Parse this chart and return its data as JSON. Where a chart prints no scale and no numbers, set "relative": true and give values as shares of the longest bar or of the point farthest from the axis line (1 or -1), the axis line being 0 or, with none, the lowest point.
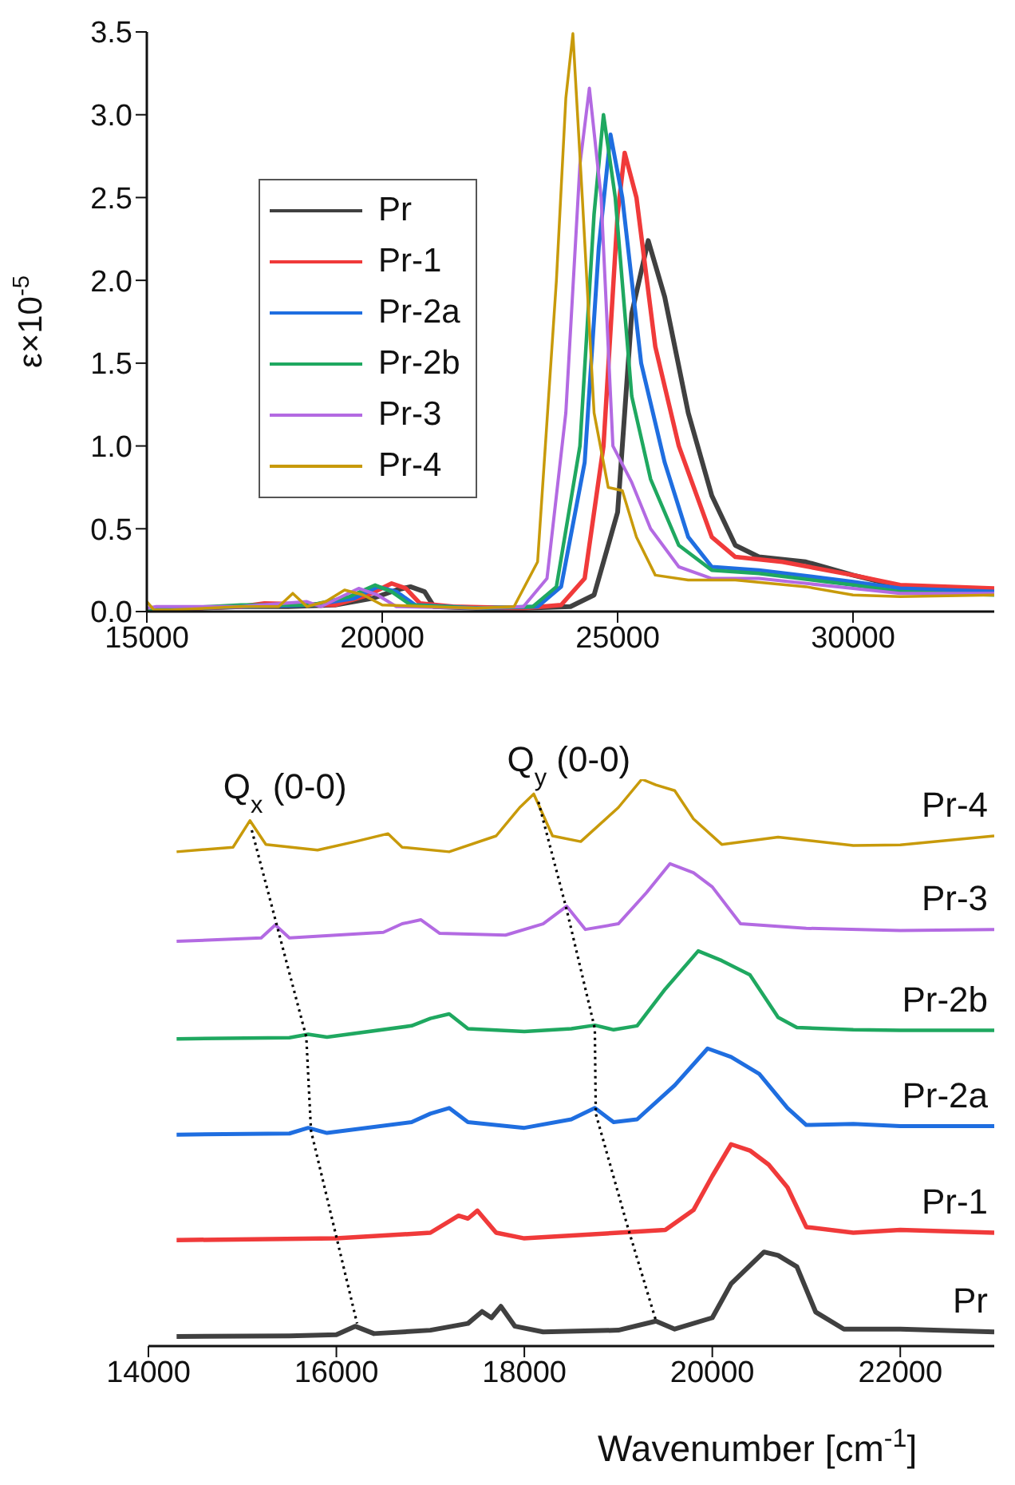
{
  "chart_data": [
    {
      "type": "line",
      "ylabel": "ε×10$^{-5}$",
      "xlim": [
        15000,
        33000
      ],
      "xticks": [
        15000,
        20000,
        25000,
        30000
      ],
      "ylim": [
        0,
        3.5
      ],
      "yticks": [
        {
          "value": 0,
          "label": "0.0"
        },
        {
          "value": 0.5,
          "label": "0.5"
        },
        {
          "value": 1,
          "label": "1.0"
        },
        {
          "value": 1.5,
          "label": "1.5"
        },
        {
          "value": 2,
          "label": "2.0"
        },
        {
          "value": 2.5,
          "label": "2.5"
        },
        {
          "value": 3,
          "label": "3.0"
        },
        {
          "value": 3.5,
          "label": "3.5"
        }
      ],
      "legend": "left",
      "marker": "none",
      "series": [
        {
          "name": "Pr",
          "color": "#404040",
          "x": [
            15000,
            17000,
            18000,
            19000,
            19800,
            20300,
            20600,
            20900,
            21100,
            22000,
            23000,
            24000,
            24500,
            25000,
            25300,
            25650,
            26000,
            26500,
            27000,
            27500,
            28000,
            29000,
            30000,
            31000,
            32000,
            33000
          ],
          "values": [
            0.01,
            0.03,
            0.03,
            0.04,
            0.08,
            0.13,
            0.15,
            0.12,
            0.03,
            0.02,
            0.02,
            0.03,
            0.1,
            0.6,
            1.8,
            2.24,
            1.9,
            1.2,
            0.7,
            0.4,
            0.33,
            0.3,
            0.22,
            0.15,
            0.13,
            0.12
          ]
        },
        {
          "name": "Pr-1",
          "color": "#f03a3a",
          "x": [
            15000,
            17000,
            17500,
            19000,
            19700,
            20200,
            20500,
            20800,
            21500,
            23000,
            23800,
            24300,
            24700,
            25000,
            25150,
            25400,
            25800,
            26300,
            27000,
            27500,
            28500,
            30000,
            31000,
            33000
          ],
          "values": [
            0.01,
            0.03,
            0.05,
            0.04,
            0.1,
            0.17,
            0.14,
            0.05,
            0.03,
            0.02,
            0.04,
            0.2,
            1.0,
            2.4,
            2.77,
            2.5,
            1.6,
            1.0,
            0.45,
            0.33,
            0.3,
            0.22,
            0.16,
            0.14
          ]
        },
        {
          "name": "Pr-2a",
          "color": "#1f6ee0",
          "x": [
            15000,
            17000,
            18500,
            19400,
            19900,
            20300,
            20700,
            22000,
            23300,
            23800,
            24300,
            24600,
            24850,
            25100,
            25500,
            26000,
            26500,
            27000,
            28000,
            30000,
            31000,
            33000
          ],
          "values": [
            0.01,
            0.03,
            0.04,
            0.08,
            0.15,
            0.12,
            0.04,
            0.02,
            0.03,
            0.15,
            0.9,
            2.2,
            2.88,
            2.5,
            1.5,
            0.9,
            0.45,
            0.27,
            0.25,
            0.18,
            0.14,
            0.12
          ]
        },
        {
          "name": "Pr-2b",
          "color": "#1fa860",
          "x": [
            15000,
            17000,
            18500,
            19300,
            19850,
            20200,
            20600,
            22000,
            23200,
            23700,
            24200,
            24500,
            24700,
            24950,
            25300,
            25700,
            26300,
            27000,
            28000,
            30000,
            31000,
            33000
          ],
          "values": [
            0.01,
            0.04,
            0.04,
            0.09,
            0.16,
            0.12,
            0.04,
            0.02,
            0.03,
            0.15,
            1.0,
            2.4,
            3.0,
            2.5,
            1.3,
            0.8,
            0.4,
            0.25,
            0.23,
            0.16,
            0.12,
            0.1
          ]
        },
        {
          "name": "Pr-3",
          "color": "#b36ae2",
          "x": [
            15000,
            15200,
            17000,
            18400,
            18700,
            19500,
            19900,
            20300,
            22000,
            23000,
            23500,
            23900,
            24200,
            24400,
            24650,
            24900,
            25300,
            25700,
            26300,
            27000,
            28000,
            30000,
            31000,
            33000
          ],
          "values": [
            0.02,
            0.03,
            0.03,
            0.06,
            0.03,
            0.14,
            0.1,
            0.03,
            0.02,
            0.03,
            0.2,
            1.2,
            2.7,
            3.16,
            2.5,
            1.0,
            0.78,
            0.5,
            0.27,
            0.2,
            0.2,
            0.14,
            0.11,
            0.11
          ]
        },
        {
          "name": "Pr-4",
          "color": "#c89a0a",
          "x": [
            15000,
            15150,
            15500,
            17000,
            17800,
            18100,
            18400,
            18800,
            19200,
            19600,
            20000,
            22000,
            22800,
            23300,
            23700,
            23900,
            24050,
            24250,
            24500,
            24800,
            25100,
            25400,
            25800,
            26500,
            27500,
            29000,
            30000,
            31000,
            33000
          ],
          "values": [
            0.06,
            0.01,
            0.01,
            0.03,
            0.03,
            0.11,
            0.03,
            0.06,
            0.13,
            0.1,
            0.04,
            0.02,
            0.03,
            0.3,
            2.0,
            3.1,
            3.49,
            2.5,
            1.2,
            0.75,
            0.73,
            0.45,
            0.22,
            0.19,
            0.19,
            0.15,
            0.1,
            0.09,
            0.1
          ]
        }
      ]
    },
    {
      "type": "line",
      "xlabel": "Wavenumber [cm$^{-1}$]",
      "xlim": [
        14000,
        23000
      ],
      "xticks": [
        14000,
        16000,
        18000,
        20000,
        22000
      ],
      "relative": true,
      "marker": "none",
      "annotations": [
        {
          "text": "Q$_{x}$ (0-0)",
          "x": 15080,
          "y": 0.927
        },
        {
          "text": "Q$_{y}$ (0-0)",
          "x": 18100,
          "y": 0.974
        }
      ],
      "series": [
        {
          "name": "Pr",
          "color": "#404040",
          "x": [
            14300,
            15500,
            16000,
            16200,
            16400,
            17000,
            17400,
            17550,
            17650,
            17750,
            17900,
            18200,
            19000,
            19400,
            19600,
            20000,
            20200,
            20550,
            20700,
            20900,
            21100,
            21400,
            22000,
            23000
          ],
          "values": [
            0.017,
            0.018,
            0.02,
            0.035,
            0.022,
            0.028,
            0.04,
            0.061,
            0.05,
            0.07,
            0.035,
            0.025,
            0.028,
            0.044,
            0.03,
            0.05,
            0.11,
            0.166,
            0.16,
            0.14,
            0.06,
            0.03,
            0.03,
            0.025
          ]
        },
        {
          "name": "Pr-1",
          "color": "#f03a3a",
          "x": [
            14300,
            16000,
            17000,
            17300,
            17400,
            17500,
            17700,
            18000,
            19000,
            19500,
            19800,
            20000,
            20200,
            20400,
            20600,
            20800,
            21000,
            21500,
            22000,
            23000
          ],
          "values": [
            0.187,
            0.19,
            0.2,
            0.23,
            0.225,
            0.239,
            0.2,
            0.19,
            0.2,
            0.205,
            0.24,
            0.3,
            0.356,
            0.345,
            0.32,
            0.28,
            0.21,
            0.2,
            0.205,
            0.2
          ]
        },
        {
          "name": "Pr-2a",
          "color": "#1f6ee0",
          "x": [
            14300,
            15500,
            15700,
            15900,
            16800,
            17000,
            17200,
            17400,
            18000,
            18500,
            18750,
            18950,
            19200,
            19600,
            19950,
            20200,
            20500,
            20800,
            21000,
            21500,
            22000,
            23000
          ],
          "values": [
            0.373,
            0.375,
            0.385,
            0.376,
            0.395,
            0.41,
            0.42,
            0.395,
            0.385,
            0.4,
            0.42,
            0.395,
            0.4,
            0.46,
            0.525,
            0.51,
            0.48,
            0.42,
            0.39,
            0.392,
            0.388,
            0.388
          ]
        },
        {
          "name": "Pr-2b",
          "color": "#1fa860",
          "x": [
            14300,
            15500,
            15700,
            15900,
            16800,
            17000,
            17200,
            17400,
            18000,
            18500,
            18750,
            18950,
            19200,
            19500,
            19850,
            20100,
            20400,
            20700,
            20900,
            21500,
            22000,
            23000
          ],
          "values": [
            0.542,
            0.544,
            0.55,
            0.545,
            0.565,
            0.578,
            0.586,
            0.56,
            0.555,
            0.56,
            0.566,
            0.558,
            0.565,
            0.63,
            0.697,
            0.68,
            0.655,
            0.58,
            0.562,
            0.558,
            0.557,
            0.557
          ]
        },
        {
          "name": "Pr-3",
          "color": "#b36ae2",
          "x": [
            14300,
            15200,
            15350,
            15500,
            16500,
            16700,
            16900,
            17100,
            17800,
            18200,
            18450,
            18650,
            19000,
            19300,
            19550,
            19800,
            20000,
            20300,
            21000,
            22000,
            23000
          ],
          "values": [
            0.714,
            0.72,
            0.743,
            0.72,
            0.73,
            0.745,
            0.752,
            0.728,
            0.725,
            0.745,
            0.776,
            0.735,
            0.745,
            0.8,
            0.851,
            0.835,
            0.81,
            0.745,
            0.737,
            0.733,
            0.735
          ]
        },
        {
          "name": "Pr-4",
          "color": "#c89a0a",
          "x": [
            14300,
            14900,
            15080,
            15250,
            15800,
            16200,
            16550,
            16700,
            17200,
            17700,
            17950,
            18100,
            18300,
            18600,
            19000,
            19250,
            19400,
            19600,
            19800,
            20100,
            20700,
            21500,
            22000,
            23000
          ],
          "values": [
            0.872,
            0.88,
            0.927,
            0.885,
            0.875,
            0.89,
            0.904,
            0.88,
            0.872,
            0.9,
            0.95,
            0.974,
            0.9,
            0.89,
            0.95,
            1.0,
            0.99,
            0.98,
            0.93,
            0.885,
            0.898,
            0.883,
            0.884,
            0.9
          ]
        },
        {
          "type": "line",
          "color": "#000000",
          "line_style": "dotted",
          "x": [
            15100,
            15370,
            15680,
            15730,
            16220
          ],
          "values": [
            0.91,
            0.74,
            0.545,
            0.38,
            0.04
          ]
        },
        {
          "type": "line",
          "color": "#000000",
          "line_style": "dotted",
          "x": [
            18150,
            18450,
            18750,
            18760,
            19100,
            19400
          ],
          "values": [
            0.96,
            0.77,
            0.56,
            0.41,
            0.21,
            0.045
          ]
        }
      ]
    }
  ]
}
